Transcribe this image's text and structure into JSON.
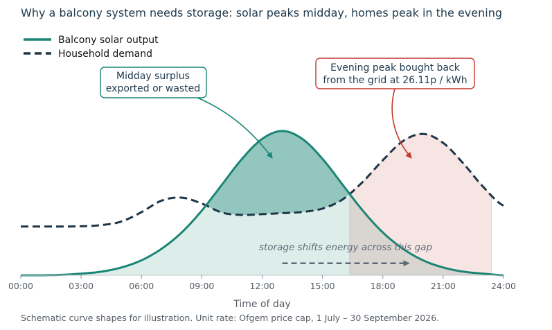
{
  "chart_data": {
    "type": "area",
    "title": "Why a balcony system needs storage: solar peaks midday, homes peak in the evening",
    "xlabel": "Time of day",
    "ylabel": "",
    "x_ticks": [
      "00:00",
      "03:00",
      "06:00",
      "09:00",
      "12:00",
      "15:00",
      "18:00",
      "21:00",
      "24:00"
    ],
    "xlim": [
      0,
      24
    ],
    "ylim": [
      0,
      1
    ],
    "grid": false,
    "legend_position": "top-left",
    "series": [
      {
        "name": "Balcony solar output",
        "style": "solid",
        "color": "#1a8575",
        "x": [
          0,
          1,
          2,
          3,
          4,
          5,
          6,
          7,
          8,
          9,
          10,
          11,
          12,
          13,
          14,
          15,
          16,
          17,
          18,
          19,
          20,
          21,
          22,
          23,
          24
        ],
        "values": [
          0.0,
          0.0,
          0.002,
          0.008,
          0.018,
          0.039,
          0.075,
          0.133,
          0.215,
          0.325,
          0.455,
          0.585,
          0.685,
          0.725,
          0.685,
          0.585,
          0.455,
          0.325,
          0.215,
          0.133,
          0.075,
          0.039,
          0.018,
          0.008,
          0.0
        ]
      },
      {
        "name": "Household demand",
        "style": "dashed",
        "color": "#1c3547",
        "x": [
          0,
          1,
          2,
          3,
          4,
          5,
          6,
          7,
          8,
          9,
          10,
          11,
          12,
          13,
          14,
          15,
          16,
          17,
          18,
          19,
          20,
          21,
          22,
          23,
          24
        ],
        "values": [
          0.245,
          0.245,
          0.245,
          0.246,
          0.252,
          0.27,
          0.317,
          0.375,
          0.39,
          0.36,
          0.315,
          0.303,
          0.307,
          0.312,
          0.318,
          0.335,
          0.381,
          0.469,
          0.578,
          0.674,
          0.71,
          0.665,
          0.562,
          0.443,
          0.35
        ]
      }
    ],
    "shaded_regions": [
      {
        "name": "midday surplus",
        "color": "#1a8575"
      },
      {
        "name": "evening shortfall",
        "color": "#c0392b"
      }
    ],
    "annotations": [
      {
        "text": [
          "Midday surplus",
          "exported or wasted"
        ],
        "border_color": "#1a8575",
        "target_x": 12.5,
        "target_y": 0.58
      },
      {
        "text": [
          "Evening peak bought back",
          "from the grid at 26.11p / kWh"
        ],
        "border_color": "#c0392b",
        "target_x": 19.4,
        "target_y": 0.58
      }
    ],
    "gap_label": "storage shifts energy across this gap",
    "gap_arrow": {
      "x_start": 13,
      "x_end": 19.3,
      "y": 0.06
    },
    "footnote": "Schematic curve shapes for illustration. Unit rate: Ofgem price cap, 1 July – 30 September 2026."
  }
}
